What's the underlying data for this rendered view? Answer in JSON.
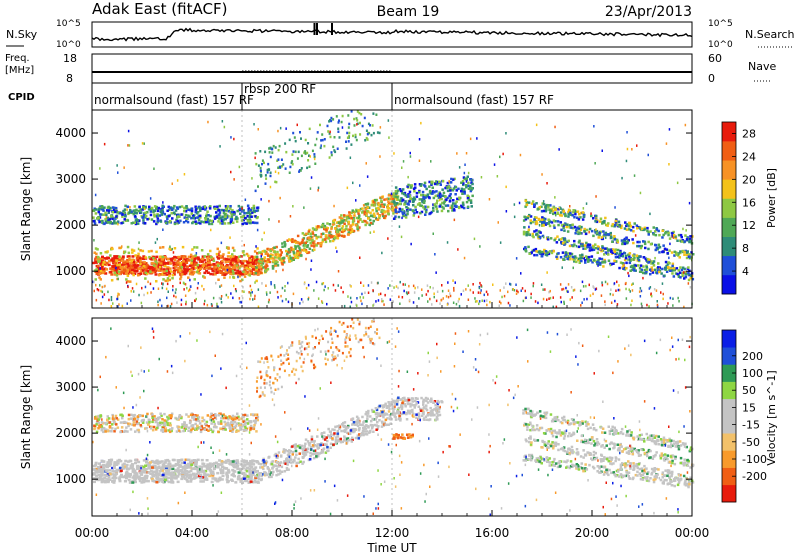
{
  "header": {
    "title": "Adak East (fitACF)",
    "beam": "Beam 19",
    "date": "23/Apr/2013"
  },
  "strip_labels": {
    "nsky": "N.Sky",
    "nsearch": "N.Search",
    "freq": "Freq.",
    "freq_unit": "[MHz]",
    "nave": "Nave",
    "cpid": "CPID"
  },
  "noise_axis": {
    "left_ticks": [
      "10^5",
      "10^0"
    ],
    "right_ticks": [
      "10^5",
      "10^0"
    ]
  },
  "freq_axis": {
    "left_ticks": [
      "18",
      "8"
    ],
    "right_ticks": [
      "60",
      "0"
    ]
  },
  "cpid_segments": [
    {
      "label": "normalsound (fast) 157 RF",
      "start_hour": 0,
      "end_hour": 6
    },
    {
      "label": "rbsp 200 RF",
      "start_hour": 6,
      "end_hour": 12
    },
    {
      "label": "normalsound (fast) 157 RF",
      "start_hour": 12,
      "end_hour": 24
    }
  ],
  "x_axis": {
    "label": "Time UT",
    "ticks": [
      "00:00",
      "04:00",
      "08:00",
      "12:00",
      "16:00",
      "20:00",
      "00:00"
    ],
    "range_hours": [
      0,
      24
    ]
  },
  "colors": {
    "power": [
      "#0a10e6",
      "#1f4fd8",
      "#2e8c78",
      "#4fa856",
      "#8ec843",
      "#f4c21a",
      "#f79225",
      "#f05e14",
      "#e81b0c"
    ],
    "velocity": [
      "#e81b0c",
      "#f05e14",
      "#f89a2b",
      "#f2c16a",
      "#c4c4c4",
      "#c4c4c4",
      "#8ed643",
      "#2e9a55",
      "#1f4fd8",
      "#0a1ee6"
    ]
  },
  "chart_data": [
    {
      "type": "heatmap",
      "name": "power",
      "ylabel": "Slant Range [km]",
      "y_ticks": [
        "1000",
        "2000",
        "3000",
        "4000"
      ],
      "ylim": [
        200,
        4500
      ],
      "colorbar_label": "Power [dB]",
      "colorbar_ticks": [
        "4",
        "8",
        "12",
        "16",
        "20",
        "24",
        "28"
      ],
      "colorbar_range": [
        0,
        30
      ],
      "features": [
        {
          "desc": "strong low band",
          "hours": [
            0,
            6.5
          ],
          "range_km": [
            900,
            1400
          ],
          "value_db": 26
        },
        {
          "desc": "rising band",
          "hours": [
            6.5,
            12
          ],
          "range_km_start": [
            1100,
            1600
          ],
          "range_km_end": [
            2400,
            2900
          ],
          "value_db": 18
        },
        {
          "desc": "upper band",
          "hours": [
            0,
            6.5
          ],
          "range_km": [
            2100,
            2400
          ],
          "value_db": 10
        },
        {
          "desc": "evening bands",
          "hours": [
            17,
            24
          ],
          "range_km_start": [
            1800,
            2400
          ],
          "range_km_end": [
            1000,
            1600
          ],
          "value_db": 12
        }
      ]
    },
    {
      "type": "heatmap",
      "name": "velocity",
      "ylabel": "Slant Range [km]",
      "y_ticks": [
        "1000",
        "2000",
        "3000",
        "4000"
      ],
      "ylim": [
        200,
        4500
      ],
      "colorbar_label": "Velocity [m s^-1]",
      "colorbar_ticks": [
        "200",
        "100",
        "50",
        "15",
        "-15",
        "-50",
        "-100",
        "-200"
      ],
      "colorbar_range": [
        -250,
        250
      ],
      "features": [
        {
          "desc": "ground scatter low band",
          "hours": [
            0,
            6.5
          ],
          "range_km": [
            900,
            1500
          ],
          "value_ms": 0
        },
        {
          "desc": "rising ground scatter",
          "hours": [
            6.5,
            14
          ],
          "range_km_start": [
            1100,
            1600
          ],
          "range_km_end": [
            2400,
            2900
          ],
          "value_ms": 0
        },
        {
          "desc": "ionospheric scatter",
          "hours": [
            0,
            6.5
          ],
          "range_km": [
            2100,
            2400
          ],
          "value_ms": -40
        },
        {
          "desc": "patch near 12:00",
          "hours": [
            12,
            12.8
          ],
          "range_km": [
            1900,
            2000
          ],
          "value_ms": -60
        }
      ]
    }
  ]
}
